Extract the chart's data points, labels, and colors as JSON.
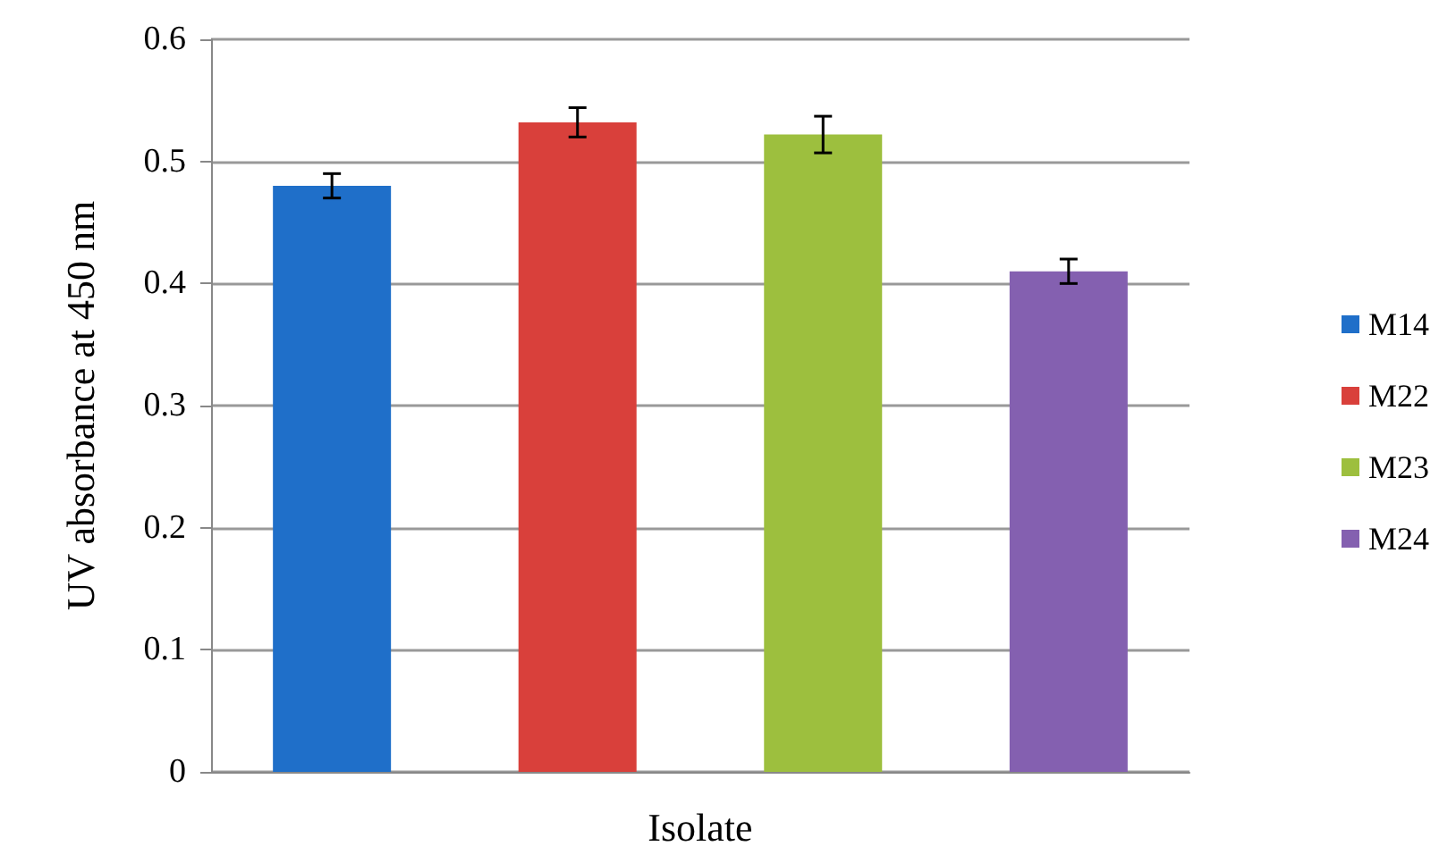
{
  "chart_data": {
    "type": "bar",
    "xlabel": "Isolate",
    "ylabel": "UV absorbance at 450 nm",
    "categories": [
      null
    ],
    "series": [
      {
        "name": "M14",
        "color": "#1f6fc9",
        "values": [
          0.48
        ],
        "errors": [
          0.01
        ]
      },
      {
        "name": "M22",
        "color": "#d9403b",
        "values": [
          0.532
        ],
        "errors": [
          0.012
        ]
      },
      {
        "name": "M23",
        "color": "#9dbf3e",
        "values": [
          0.522
        ],
        "errors": [
          0.015
        ]
      },
      {
        "name": "M24",
        "color": "#8460b0",
        "values": [
          0.41
        ],
        "errors": [
          0.01
        ]
      }
    ],
    "ylim": [
      0,
      0.6
    ],
    "yticks": [
      0,
      0.1,
      0.2,
      0.3,
      0.4,
      0.5,
      0.6
    ],
    "grid": "y",
    "legend": "right"
  }
}
